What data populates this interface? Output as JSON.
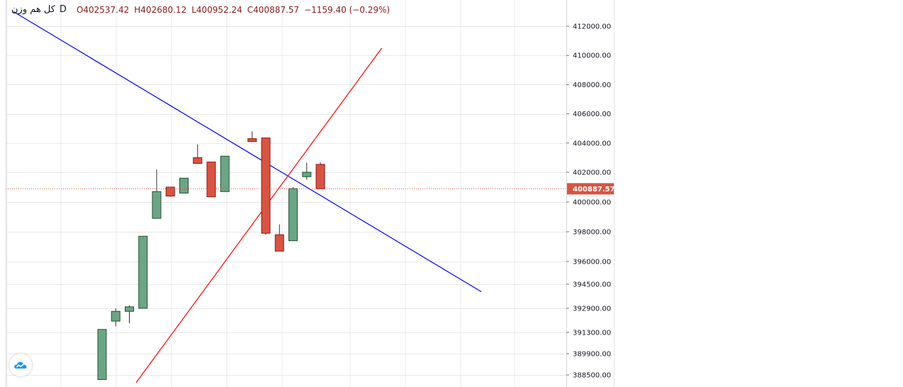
{
  "legend": {
    "symbol": "کل هم وزن",
    "interval": "D",
    "open": "O402537.42",
    "high": "H402680.12",
    "low": "L400952.24",
    "close": "C400887.57",
    "change": "−1159.40 (−0.29%)"
  },
  "last_price_label": "400887.57",
  "colors": {
    "up": "#6ba583",
    "down": "#d75442",
    "candle_border": "#225437",
    "trend_blue": "#0000ff",
    "trend_red": "#ff0000",
    "last_price": "#d75442",
    "grid": "#e8e8e8"
  },
  "chart_data": {
    "type": "candlestick",
    "interval": "D",
    "last_price": 400887.57,
    "y_ticks": [
      {
        "value": 412000,
        "label": "412000.00"
      },
      {
        "value": 410000,
        "label": "410000.00"
      },
      {
        "value": 408000,
        "label": "408000.00"
      },
      {
        "value": 406000,
        "label": "406000.00"
      },
      {
        "value": 404000,
        "label": "404000.00"
      },
      {
        "value": 402000,
        "label": "402000.00"
      },
      {
        "value": 400000,
        "label": "400000.00"
      },
      {
        "value": 398000,
        "label": "398000.00"
      },
      {
        "value": 396000,
        "label": "396000.00"
      },
      {
        "value": 394500,
        "label": "394500.00"
      },
      {
        "value": 392900,
        "label": "392900.00"
      },
      {
        "value": 391300,
        "label": "391300.00"
      },
      {
        "value": 389900,
        "label": "389900.00"
      },
      {
        "value": 388500,
        "label": "388500.00"
      }
    ],
    "candles": [
      {
        "o": 388200,
        "h": 391500,
        "l": 388200,
        "c": 391500
      },
      {
        "o": 392050,
        "h": 392900,
        "l": 391700,
        "c": 392700
      },
      {
        "o": 392700,
        "h": 393100,
        "l": 391900,
        "c": 393000
      },
      {
        "o": 392900,
        "h": 397700,
        "l": 392900,
        "c": 397700
      },
      {
        "o": 398900,
        "h": 402200,
        "l": 398900,
        "c": 400700
      },
      {
        "o": 401000,
        "h": 401000,
        "l": 400350,
        "c": 400400
      },
      {
        "o": 400600,
        "h": 401600,
        "l": 400600,
        "c": 401600
      },
      {
        "o": 403000,
        "h": 403900,
        "l": 402600,
        "c": 402600
      },
      {
        "o": 402700,
        "h": 402700,
        "l": 400350,
        "c": 400350
      },
      {
        "o": 400700,
        "h": 403100,
        "l": 400700,
        "c": 403100
      },
      null,
      {
        "o": 404300,
        "h": 404800,
        "l": 404100,
        "c": 404100
      },
      {
        "o": 404350,
        "h": 404350,
        "l": 397800,
        "c": 397900
      },
      {
        "o": 397800,
        "h": 398500,
        "l": 396700,
        "c": 396700
      },
      {
        "o": 397400,
        "h": 401000,
        "l": 397400,
        "c": 400900
      },
      {
        "o": 401700,
        "h": 402650,
        "l": 401500,
        "c": 402000
      },
      {
        "o": 402537.42,
        "h": 402680.12,
        "l": 400952.24,
        "c": 400887.57
      }
    ],
    "trendlines": [
      {
        "color": "blue",
        "from": {
          "bar": -6.5,
          "price": 413000
        },
        "to": {
          "bar": 27.8,
          "price": 394000
        }
      },
      {
        "color": "red",
        "from": {
          "bar": 2.5,
          "price": 388000
        },
        "to": {
          "bar": 20.5,
          "price": 410500
        }
      }
    ]
  }
}
